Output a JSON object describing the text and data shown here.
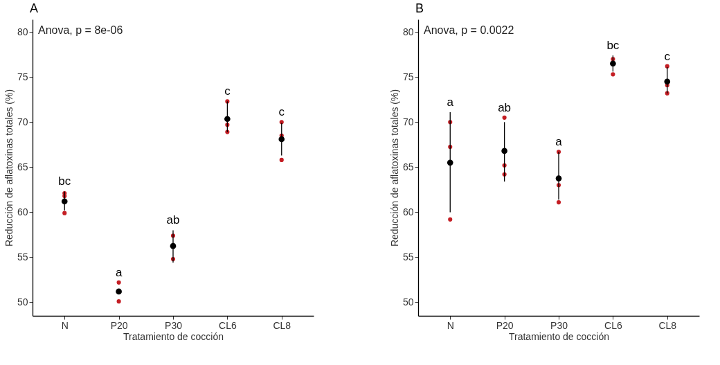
{
  "chart_data": [
    {
      "type": "scatter",
      "title": "A",
      "xlabel": "Tratamiento de cocción",
      "ylabel": "Reducción de aflatoxinas totales  (%)",
      "categories": [
        "N",
        "P20",
        "P30",
        "CL6",
        "CL8"
      ],
      "ylim": [
        48.5,
        81.4
      ],
      "yticks": [
        50,
        55,
        60,
        65,
        70,
        75,
        80
      ],
      "marker": "circle",
      "series": [
        {
          "type": "scatter",
          "color": "#c41e24",
          "x": [
            "N",
            "N",
            "N",
            "P20",
            "P20",
            "P20",
            "P30",
            "P30",
            "P30",
            "CL6",
            "CL6",
            "CL6",
            "CL8",
            "CL8",
            "CL8"
          ],
          "values": [
            62.1,
            61.8,
            59.9,
            52.2,
            null,
            50.1,
            57.4,
            null,
            54.8,
            72.3,
            69.7,
            68.9,
            70.0,
            68.5,
            65.8
          ]
        },
        {
          "type": "scatter",
          "color": "#000000",
          "values": [
            61.2,
            51.2,
            56.25,
            70.35,
            68.1
          ],
          "errors": [
            [
              60.2,
              62.3
            ],
            null,
            [
              54.4,
              58.0
            ],
            [
              68.9,
              72.3
            ],
            [
              66.3,
              69.9
            ]
          ]
        }
      ],
      "annotations": [
        "Anova, p = 8e-06",
        {
          "text": "bc",
          "x": "N",
          "y": 62.3
        },
        {
          "text": "a",
          "x": "P20",
          "y": 52.2
        },
        {
          "text": "ab",
          "x": "P30",
          "y": 58.0
        },
        {
          "text": "c",
          "x": "CL6",
          "y": 72.3
        },
        {
          "text": "c",
          "x": "CL8",
          "y": 70.0
        }
      ]
    },
    {
      "type": "scatter",
      "title": "B",
      "xlabel": "Tratamiento de cocción",
      "ylabel": "Reducción de aflatoxinas totales  (%)",
      "categories": [
        "N",
        "P20",
        "P30",
        "CL6",
        "CL8"
      ],
      "ylim": [
        48.5,
        81.4
      ],
      "yticks": [
        50,
        55,
        60,
        65,
        70,
        75,
        80
      ],
      "marker": "circle",
      "series": [
        {
          "type": "scatter",
          "color": "#c41e24",
          "x": [
            "N",
            "N",
            "N",
            "P20",
            "P20",
            "P20",
            "P30",
            "P30",
            "P30",
            "CL6",
            "CL6",
            "CL6",
            "CL8",
            "CL8",
            "CL8"
          ],
          "values": [
            70.0,
            67.25,
            59.2,
            70.5,
            65.2,
            64.2,
            66.7,
            63.0,
            61.1,
            77.0,
            null,
            75.3,
            76.2,
            74.1,
            73.2
          ]
        },
        {
          "type": "scatter",
          "color": "#000000",
          "values": [
            65.5,
            66.8,
            63.75,
            76.5,
            74.5
          ],
          "errors": [
            [
              60.0,
              71.1
            ],
            [
              63.4,
              70.0
            ],
            [
              61.4,
              66.7
            ],
            [
              75.6,
              77.4
            ],
            [
              73.2,
              76.1
            ]
          ]
        }
      ],
      "annotations": [
        "Anova, p = 0.0022",
        {
          "text": "a",
          "x": "N",
          "y": 71.1
        },
        {
          "text": "ab",
          "x": "P20",
          "y": 70.5
        },
        {
          "text": "a",
          "x": "P30",
          "y": 66.7
        },
        {
          "text": "bc",
          "x": "CL6",
          "y": 77.4
        },
        {
          "text": "c",
          "x": "CL8",
          "y": 76.2
        }
      ]
    }
  ]
}
